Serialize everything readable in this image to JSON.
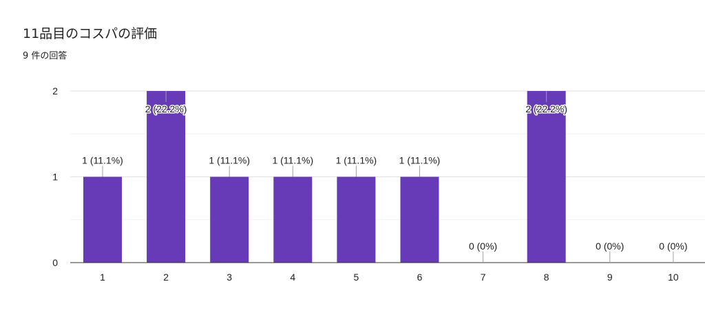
{
  "title": "11品目のコスパの評価",
  "response_count": "9 件の回答",
  "colors": {
    "bar": "#673ab7",
    "grid": "#e8eaed",
    "axis": "#333333",
    "leader": "#9e9e9e"
  },
  "chart_data": {
    "type": "bar",
    "categories": [
      "1",
      "2",
      "3",
      "4",
      "5",
      "6",
      "7",
      "8",
      "9",
      "10"
    ],
    "values": [
      1,
      2,
      1,
      1,
      1,
      1,
      0,
      2,
      0,
      0
    ],
    "data_labels": [
      "1 (11.1%)",
      "2 (22.2%)",
      "1 (11.1%)",
      "1 (11.1%)",
      "1 (11.1%)",
      "1 (11.1%)",
      "0 (0%)",
      "2 (22.2%)",
      "0 (0%)",
      "0 (0%)"
    ],
    "yticks": [
      "0",
      "1",
      "2"
    ],
    "ylim": [
      0,
      2
    ],
    "grid": true
  }
}
